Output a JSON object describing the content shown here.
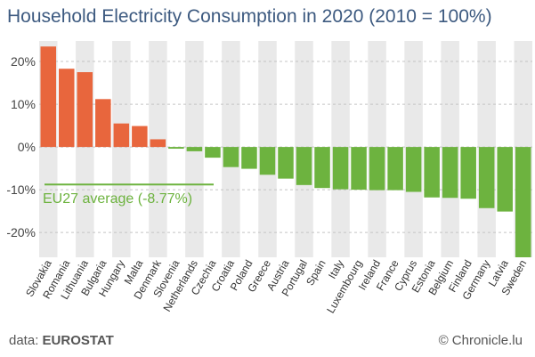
{
  "chart_data": {
    "type": "bar",
    "title": "Household Electricity Consumption in 2020 (2010 = 100%)",
    "categories": [
      "Slovakia",
      "Romania",
      "Lithuania",
      "Bulgaria",
      "Hungary",
      "Malta",
      "Denmark",
      "Slovenia",
      "Netherlands",
      "Czechia",
      "Croatia",
      "Poland",
      "Greece",
      "Austria",
      "Portugal",
      "Spain",
      "Italy",
      "Luxembourg",
      "Ireland",
      "France",
      "Cyprus",
      "Estonia",
      "Belgium",
      "Finland",
      "Germany",
      "Latvia",
      "Sweden"
    ],
    "values": [
      23.5,
      18.3,
      17.5,
      11.2,
      5.5,
      4.9,
      1.8,
      -0.4,
      -1.0,
      -2.5,
      -4.7,
      -5.1,
      -6.5,
      -7.4,
      -8.9,
      -9.6,
      -9.9,
      -10.0,
      -10.1,
      -10.1,
      -10.5,
      -11.8,
      -11.9,
      -12.1,
      -14.3,
      -15.1,
      -25.8
    ],
    "ylim": [
      -25.8,
      24.8
    ],
    "yticks": [
      20,
      10,
      0,
      -10,
      -20
    ],
    "ytick_labels": [
      "20%",
      "10%",
      "0%",
      "-10%",
      "-20%"
    ],
    "average": {
      "value": -8.77,
      "label": "EU27 average (-8.77%)",
      "color": "#6db33f"
    },
    "colors": {
      "positive": "#e8663d",
      "negative": "#6db33f",
      "band": "#e9e9e9"
    },
    "grid": true
  },
  "footer": {
    "source_prefix": "data: ",
    "source_name": "EUROSTAT",
    "credit": "© Chronicle.lu"
  }
}
